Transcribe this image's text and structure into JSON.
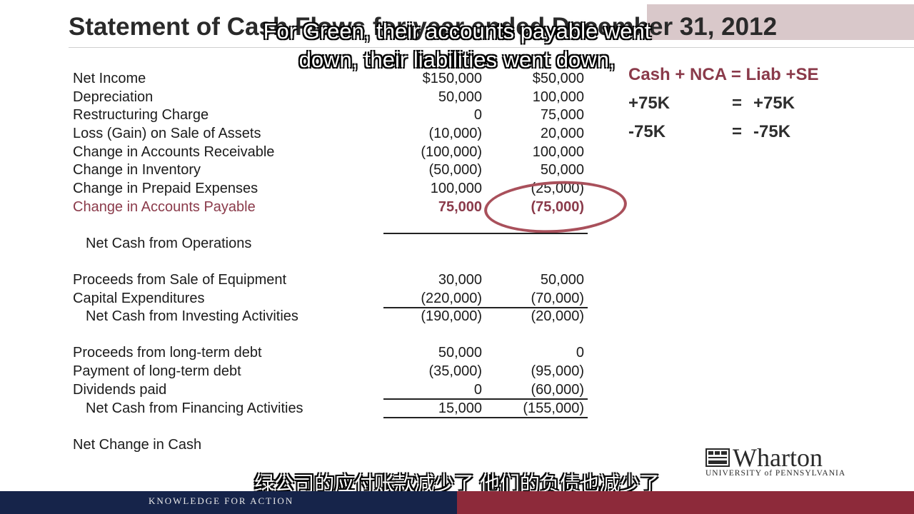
{
  "title": "Statement of Cash Flows for year ended December 31, 2012",
  "rows": {
    "net_income": {
      "label": "Net Income",
      "c1": "$150,000",
      "c2": "$50,000"
    },
    "depreciation": {
      "label": "Depreciation",
      "c1": "50,000",
      "c2": "100,000"
    },
    "restructuring": {
      "label": "Restructuring Charge",
      "c1": "0",
      "c2": "75,000"
    },
    "loss_gain": {
      "label": "Loss (Gain) on Sale of Assets",
      "c1": "(10,000)",
      "c2": "20,000"
    },
    "ar": {
      "label": "Change in Accounts Receivable",
      "c1": "(100,000)",
      "c2": "100,000"
    },
    "inventory": {
      "label": "Change in Inventory",
      "c1": "(50,000)",
      "c2": "50,000"
    },
    "prepaid": {
      "label": "Change in Prepaid Expenses",
      "c1": "100,000",
      "c2": "(25,000)"
    },
    "ap": {
      "label": "Change in Accounts Payable",
      "c1": "75,000",
      "c2": "(75,000)"
    },
    "net_ops": {
      "label": "Net Cash from Operations"
    },
    "proceeds_equip": {
      "label": "Proceeds from Sale of Equipment",
      "c1": "30,000",
      "c2": "50,000"
    },
    "capex": {
      "label": "Capital Expenditures",
      "c1": "(220,000)",
      "c2": "(70,000)"
    },
    "net_invest": {
      "label": "Net Cash from Investing Activities",
      "c1": "(190,000)",
      "c2": "(20,000)"
    },
    "proceeds_debt": {
      "label": "Proceeds from long-term debt",
      "c1": "50,000",
      "c2": "0"
    },
    "payment_debt": {
      "label": "Payment of long-term debt",
      "c1": "(35,000)",
      "c2": "(95,000)"
    },
    "dividends": {
      "label": "Dividends paid",
      "c1": "0",
      "c2": "(60,000)"
    },
    "net_fin": {
      "label": "Net Cash from Financing Activities",
      "c1": "15,000",
      "c2": "(155,000)"
    },
    "net_change": {
      "label": "Net Change in Cash"
    }
  },
  "equation": {
    "header": "Cash + NCA = Liab +SE",
    "row1_left": "+75K",
    "row1_eq": "=",
    "row1_right": "+75K",
    "row2_left": "-75K",
    "row2_eq": "=",
    "row2_right": "-75K"
  },
  "subtitles": {
    "en_line1": "For Green, their accounts payable went",
    "en_line2": "down, their liabilities went down,",
    "zh": "绿公司的应付账款减少了 他们的负债也减少了"
  },
  "logo": {
    "word": "Wharton",
    "sub": "UNIVERSITY of PENNSYLVANIA"
  },
  "footer": {
    "text": "KNOWLEDGE FOR ACTION"
  },
  "colors": {
    "accent": "#8a3a4a",
    "oval": "#a9505b",
    "footer_left": "#16244a",
    "footer_right": "#8d2a3a"
  }
}
